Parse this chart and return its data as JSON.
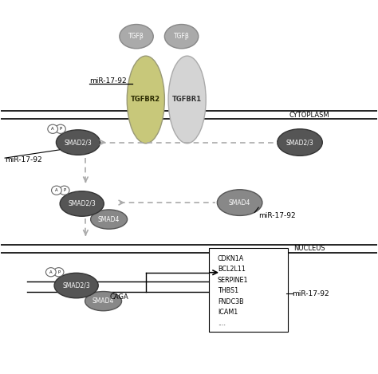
{
  "bg_color": "#ffffff",
  "tgfb_color": "#aaaaaa",
  "tgfbr2_color": "#c8c87a",
  "tgfbr1_color": "#d4d4d4",
  "smad23_dark_color": "#555555",
  "smad4_color": "#888888",
  "genes": [
    "CDKN1A",
    "BCL2L11",
    "SERPINE1",
    "THBS1",
    "FNDC3B",
    "ICAM1",
    "...."
  ]
}
